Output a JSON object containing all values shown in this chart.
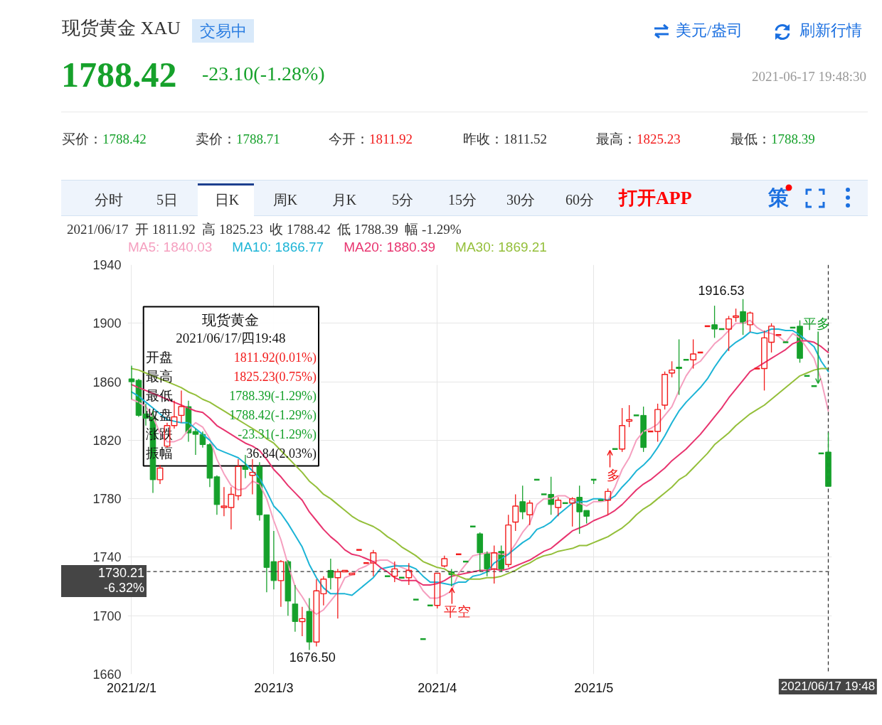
{
  "chart_data": {
    "type": "candlestick",
    "title": "现货黄金 XAU",
    "categories": [
      "2021/2/1",
      null,
      null,
      null,
      null,
      null,
      null,
      null,
      null,
      null,
      null,
      null,
      null,
      null,
      null,
      null,
      null,
      null,
      null,
      null,
      "2021/3",
      null,
      null,
      null,
      null,
      null,
      null,
      null,
      null,
      null,
      null,
      null,
      null,
      null,
      null,
      null,
      null,
      null,
      null,
      null,
      null,
      null,
      null,
      "2021/4",
      null,
      null,
      null,
      null,
      null,
      null,
      null,
      null,
      null,
      null,
      null,
      null,
      null,
      null,
      null,
      null,
      null,
      null,
      null,
      null,
      null,
      "2021/5",
      null,
      null,
      null,
      null,
      null,
      null,
      null,
      null,
      null,
      null,
      null,
      null,
      null,
      null,
      null,
      null,
      null,
      null,
      null,
      null,
      null,
      null,
      null,
      null,
      null,
      null,
      null,
      null,
      null,
      null,
      null,
      null,
      "2021/06/17 19:48"
    ],
    "ohlc": [
      [
        1862,
        1871,
        1848,
        1860
      ],
      [
        1861,
        1862,
        1836,
        1837
      ],
      [
        1838,
        1845,
        1830,
        1835
      ],
      [
        1836,
        1840,
        1784,
        1793
      ],
      [
        1793,
        1803,
        1790,
        1801
      ],
      [
        1816,
        1832,
        1815,
        1830
      ],
      [
        1830,
        1847,
        1828,
        1836
      ],
      [
        1837,
        1854,
        1832,
        1843
      ],
      [
        1843,
        1847,
        1819,
        1825
      ],
      [
        1826,
        1828,
        1810,
        1824
      ],
      [
        1824,
        1826,
        1815,
        1817
      ],
      [
        1817,
        1818,
        1788,
        1794
      ],
      [
        1795,
        1796,
        1769,
        1776
      ],
      [
        1774,
        1788,
        1768,
        1775
      ],
      [
        1774,
        1788,
        1759,
        1783
      ],
      [
        1782,
        1807,
        1779,
        1802
      ],
      [
        1802,
        1810,
        1794,
        1800
      ],
      [
        1796,
        1807,
        1783,
        1798
      ],
      [
        1802,
        1805,
        1765,
        1769
      ],
      [
        1769,
        1769,
        1716,
        1733
      ],
      [
        1737,
        1758,
        1718,
        1724
      ],
      [
        1724,
        1738,
        1706,
        1737
      ],
      [
        1737,
        1738,
        1700,
        1710
      ],
      [
        1708,
        1721,
        1689,
        1696
      ],
      [
        1696,
        1706,
        1686,
        1698
      ],
      [
        1703,
        1712,
        1676.5,
        1682
      ],
      [
        1682,
        1725,
        1679,
        1717
      ],
      [
        1715,
        1727,
        1707,
        1725
      ],
      [
        1731,
        1739,
        1718,
        1726
      ],
      [
        1726,
        1732,
        1698,
        1730
      ],
      [
        1730,
        1731,
        1730,
        1731
      ],
      [
        1728,
        1729,
        1728,
        1729
      ],
      [
        1745,
        1745,
        1745,
        1745
      ],
      [
        1736,
        1736,
        1736,
        1736
      ],
      [
        1736,
        1745,
        1727,
        1743
      ],
      null,
      [
        1727,
        1727,
        1727,
        1727
      ],
      [
        1727,
        1737,
        1723,
        1732
      ],
      [
        1726,
        1726,
        1726,
        1726
      ],
      [
        1726,
        1736,
        1721,
        1731
      ],
      [
        1711,
        1711,
        1711,
        1711
      ],
      [
        1684,
        1684,
        1684,
        1684
      ],
      [
        1707,
        1707,
        1707,
        1707
      ],
      [
        1707,
        1729,
        1705,
        1729
      ],
      [
        1734,
        1741,
        1733,
        1739
      ],
      [
        1730,
        1732,
        1720,
        1728
      ],
      [
        1742,
        1742,
        1742,
        1742
      ],
      [
        1737,
        1737,
        1737,
        1737
      ],
      [
        1761,
        1761,
        1761,
        1761
      ],
      [
        1756,
        1757,
        1730,
        1743
      ],
      [
        1743,
        1744,
        1727,
        1732
      ],
      [
        1732,
        1748,
        1722,
        1743
      ],
      [
        1744,
        1748,
        1730,
        1732
      ],
      [
        1735,
        1769,
        1733,
        1762
      ],
      [
        1764,
        1783,
        1758,
        1775
      ],
      [
        1778,
        1789,
        1766,
        1771
      ],
      [
        1769,
        1779,
        1762,
        1777
      ],
      [
        1793,
        1793,
        1793,
        1793
      ],
      [
        1783,
        1783,
        1783,
        1783
      ],
      [
        1783,
        1795,
        1769,
        1776
      ],
      [
        1774,
        1781,
        1768,
        1779
      ],
      [
        1777,
        1777,
        1777,
        1777
      ],
      [
        1777,
        1781,
        1761,
        1780
      ],
      [
        1781,
        1789,
        1756,
        1771
      ],
      [
        1772,
        1772,
        1763,
        1768
      ],
      [
        1793,
        1793,
        1790,
        1793
      ],
      [
        1779,
        1779,
        1779,
        1779
      ],
      [
        1779,
        1787,
        1769,
        1785
      ],
      [
        1814,
        1814,
        1814,
        1814
      ],
      [
        1814,
        1842,
        1812,
        1830
      ],
      [
        1833,
        1844,
        1829,
        1834
      ],
      [
        1837,
        1837,
        1837,
        1837
      ],
      [
        1837,
        1843,
        1812,
        1815
      ],
      [
        1826,
        1826,
        1826,
        1826
      ],
      [
        1826,
        1845,
        1819,
        1841
      ],
      [
        1844,
        1867,
        1841,
        1865
      ],
      [
        1866,
        1874,
        1863,
        1868
      ],
      [
        1870,
        1889,
        1851,
        1869
      ],
      [
        1875,
        1875,
        1875,
        1875
      ],
      [
        1875,
        1889,
        1869,
        1879
      ],
      [
        1880,
        1880,
        1880,
        1880
      ],
      [
        1898,
        1898,
        1898,
        1898
      ],
      [
        1899,
        1912,
        1890,
        1896
      ],
      [
        1896,
        1896,
        1896,
        1896
      ],
      [
        1896,
        1905,
        1881,
        1903
      ],
      [
        1904,
        1910,
        1901,
        1905
      ],
      [
        1908,
        1916.53,
        1892,
        1900
      ],
      [
        1899,
        1908,
        1894,
        1907
      ],
      [
        1869,
        1869,
        1869,
        1869
      ],
      [
        1869,
        1895,
        1854,
        1890
      ],
      [
        1887,
        1900,
        1880,
        1898
      ],
      [
        1892,
        1892,
        1892,
        1892
      ],
      [
        1887,
        1887,
        1887,
        1887
      ],
      [
        1897,
        1897,
        1897,
        1897
      ],
      [
        1898,
        1902,
        1873,
        1876
      ],
      [
        1864,
        1864,
        1864,
        1864
      ],
      [
        1857,
        1857,
        1857,
        1857
      ],
      [
        1811,
        1811,
        1811,
        1811
      ],
      [
        1811.92,
        1825.23,
        1788.39,
        1788.42
      ]
    ],
    "colors": [
      "#16a12b",
      "#16a12b",
      "#16a12b",
      "#16a12b",
      "#f21b1b",
      "#f21b1b",
      "#f21b1b",
      "#f21b1b",
      "#16a12b",
      "#16a12b",
      "#16a12b",
      "#16a12b",
      "#16a12b",
      "#f21b1b",
      "#f21b1b",
      "#f21b1b",
      "#16a12b",
      "#f21b1b",
      "#16a12b",
      "#16a12b",
      "#16a12b",
      "#f21b1b",
      "#16a12b",
      "#16a12b",
      "#f21b1b",
      "#16a12b",
      "#f21b1b",
      "#f21b1b",
      "#16a12b",
      "#f21b1b",
      "#f21b1b",
      "#f21b1b",
      "#f21b1b",
      "#f21b1b",
      "#f21b1b",
      null,
      "#16a12b",
      "#f21b1b",
      "#16a12b",
      "#f21b1b",
      "#16a12b",
      "#16a12b",
      "#16a12b",
      "#f21b1b",
      "#f21b1b",
      "#16a12b",
      "#f21b1b",
      "#16a12b",
      "#16a12b",
      "#16a12b",
      "#16a12b",
      "#f21b1b",
      "#16a12b",
      "#f21b1b",
      "#f21b1b",
      "#16a12b",
      "#f21b1b",
      "#16a12b",
      "#16a12b",
      "#16a12b",
      "#f21b1b",
      "#16a12b",
      "#f21b1b",
      "#16a12b",
      "#16a12b",
      "#16a12b",
      "#16a12b",
      "#f21b1b",
      "#16a12b",
      "#f21b1b",
      "#f21b1b",
      "#16a12b",
      "#16a12b",
      "#f21b1b",
      "#f21b1b",
      "#f21b1b",
      "#f21b1b",
      "#16a12b",
      "#16a12b",
      "#f21b1b",
      "#f21b1b",
      "#f21b1b",
      "#16a12b",
      "#16a12b",
      "#f21b1b",
      "#f21b1b",
      "#16a12b",
      "#f21b1b",
      "#f21b1b",
      "#f21b1b",
      "#f21b1b",
      "#f21b1b",
      "#16a12b",
      "#16a12b",
      "#16a12b",
      "#16a12b",
      "#16a12b",
      "#16a12b",
      "#16a12b"
    ],
    "series": [
      {
        "name": "MA5: 1840.03",
        "type": "line",
        "color": "#f59fbf",
        "values": [
          1848,
          1846,
          1843,
          1836,
          1825,
          1819,
          1819,
          1821,
          1827,
          1832,
          1829,
          1821,
          1807,
          1797,
          1789,
          1786,
          1787,
          1792,
          1790,
          1780,
          1765,
          1752,
          1735,
          1720,
          1713,
          1705,
          1701,
          1704,
          1710,
          1716,
          1726,
          1728,
          1732,
          1734,
          1737,
          1738,
          1738,
          1735,
          1733,
          1731,
          1725,
          1717,
          1712,
          1712,
          1714,
          1717,
          1729,
          1735,
          1741,
          1742,
          1743,
          1743,
          1742,
          1742,
          1749,
          1757,
          1763,
          1776,
          1780,
          1780,
          1782,
          1782,
          1779,
          1777,
          1775,
          1778,
          1778,
          1779,
          1788,
          1800,
          1808,
          1820,
          1826,
          1828,
          1831,
          1837,
          1843,
          1854,
          1864,
          1871,
          1874,
          1880,
          1886,
          1890,
          1895,
          1900,
          1900,
          1902,
          1897,
          1894,
          1893,
          1891,
          1887,
          1893,
          1890,
          1883,
          1876,
          1861,
          1840
        ]
      },
      {
        "name": "MA10: 1866.77",
        "type": "line",
        "color": "#1cb4d6",
        "values": [
          1853,
          1850,
          1846,
          1842,
          1838,
          1834,
          1833,
          1832,
          1832,
          1828,
          1824,
          1820,
          1814,
          1812,
          1810,
          1808,
          1804,
          1799,
          1794,
          1785,
          1775,
          1770,
          1763,
          1755,
          1747,
          1735,
          1726,
          1719,
          1715,
          1715,
          1715,
          1714,
          1718,
          1722,
          1726,
          1732,
          1733,
          1734,
          1734,
          1734,
          1732,
          1727,
          1723,
          1723,
          1722,
          1721,
          1723,
          1723,
          1727,
          1728,
          1730,
          1736,
          1739,
          1742,
          1746,
          1750,
          1753,
          1759,
          1761,
          1764,
          1769,
          1773,
          1777,
          1778,
          1778,
          1780,
          1780,
          1779,
          1782,
          1788,
          1793,
          1799,
          1803,
          1808,
          1815,
          1823,
          1832,
          1840,
          1846,
          1851,
          1856,
          1862,
          1870,
          1877,
          1883,
          1887,
          1890,
          1894,
          1893,
          1894,
          1896,
          1896,
          1895,
          1895,
          1892,
          1888,
          1884,
          1874,
          1867
        ]
      },
      {
        "name": "MA20: 1880.39",
        "type": "line",
        "color": "#e8346f",
        "values": [
          1858,
          1856,
          1854,
          1852,
          1850,
          1848,
          1846,
          1844,
          1842,
          1840,
          1839,
          1835,
          1830,
          1827,
          1824,
          1821,
          1818,
          1816,
          1813,
          1807,
          1800,
          1795,
          1789,
          1784,
          1779,
          1771,
          1765,
          1759,
          1754,
          1750,
          1745,
          1742,
          1741,
          1739,
          1737,
          1733,
          1730,
          1726,
          1724,
          1724,
          1724,
          1721,
          1721,
          1722,
          1724,
          1727,
          1728,
          1729,
          1730,
          1731,
          1731,
          1732,
          1731,
          1732,
          1734,
          1736,
          1738,
          1741,
          1744,
          1746,
          1750,
          1754,
          1758,
          1760,
          1762,
          1765,
          1767,
          1769,
          1772,
          1776,
          1781,
          1786,
          1790,
          1793,
          1797,
          1801,
          1806,
          1810,
          1814,
          1819,
          1824,
          1830,
          1836,
          1842,
          1849,
          1855,
          1861,
          1867,
          1870,
          1873,
          1876,
          1879,
          1882,
          1886,
          1888,
          1888,
          1887,
          1884,
          1880
        ]
      },
      {
        "name": "MA30: 1869.21",
        "type": "line",
        "color": "#94bf3a",
        "values": [
          1869,
          1868,
          1866,
          1864,
          1862,
          1860,
          1858,
          1856,
          1853,
          1851,
          1848,
          1846,
          1843,
          1840,
          1837,
          1834,
          1831,
          1828,
          1825,
          1821,
          1818,
          1813,
          1808,
          1803,
          1798,
          1792,
          1788,
          1783,
          1780,
          1776,
          1772,
          1768,
          1765,
          1763,
          1761,
          1758,
          1754,
          1751,
          1747,
          1744,
          1741,
          1737,
          1735,
          1733,
          1732,
          1729,
          1727,
          1725,
          1725,
          1725,
          1726,
          1726,
          1727,
          1729,
          1731,
          1734,
          1736,
          1739,
          1741,
          1742,
          1744,
          1745,
          1746,
          1748,
          1748,
          1750,
          1752,
          1754,
          1757,
          1760,
          1764,
          1769,
          1773,
          1776,
          1780,
          1784,
          1788,
          1793,
          1796,
          1801,
          1806,
          1811,
          1817,
          1821,
          1825,
          1830,
          1834,
          1838,
          1841,
          1844,
          1848,
          1852,
          1856,
          1860,
          1864,
          1866,
          1868,
          1869,
          1869
        ]
      }
    ],
    "ylim": [
      1660,
      1940
    ],
    "yticks": [
      1660,
      1700,
      1740,
      1780,
      1820,
      1860,
      1900,
      1940
    ],
    "grid": true,
    "legend": "top left",
    "ref_lines": [
      {
        "axis": "y",
        "value": 1730.21,
        "label": "1730.21\n-6.32%",
        "line_style": "dashed",
        "color": "#333333"
      },
      {
        "axis": "x",
        "value": "2021/06/17 19:48",
        "line_style": "dashed",
        "color": "#333333"
      }
    ],
    "annotations": [
      "交易中",
      "美元/盎司",
      "刷新行情",
      "1788.42",
      "-23.10(-1.28%)",
      "2021-06-17 19:48:30",
      "买价：",
      "1788.42",
      "卖价：",
      "1788.71",
      "今开：",
      "1811.92",
      "昨收：",
      "1811.52",
      "最高：",
      "1825.23",
      "最低：",
      "1788.39",
      "分时",
      "5日",
      "日K",
      "周K",
      "月K",
      "5分",
      "15分",
      "30分",
      "60分",
      "打开APP",
      "策",
      "2021/06/17  开 1811.92  高 1825.23  收 1788.42  低 1788.39  幅 -1.29%",
      "现货黄金",
      "2021/06/17/四19:48",
      "开盘",
      "1811.92(0.01%)",
      "最高",
      "1825.23(0.75%)",
      "最低",
      "1788.39(-1.29%)",
      "收盘",
      "1788.42(-1.29%)",
      "涨跌",
      "-23.31(-1.29%)",
      "振幅",
      "36.84(2.03%)",
      {
        "text": "多",
        "y": 1814
      },
      {
        "text": "平空",
        "y": 1720
      },
      "平多",
      "1916.53",
      "1676.50"
    ]
  }
}
